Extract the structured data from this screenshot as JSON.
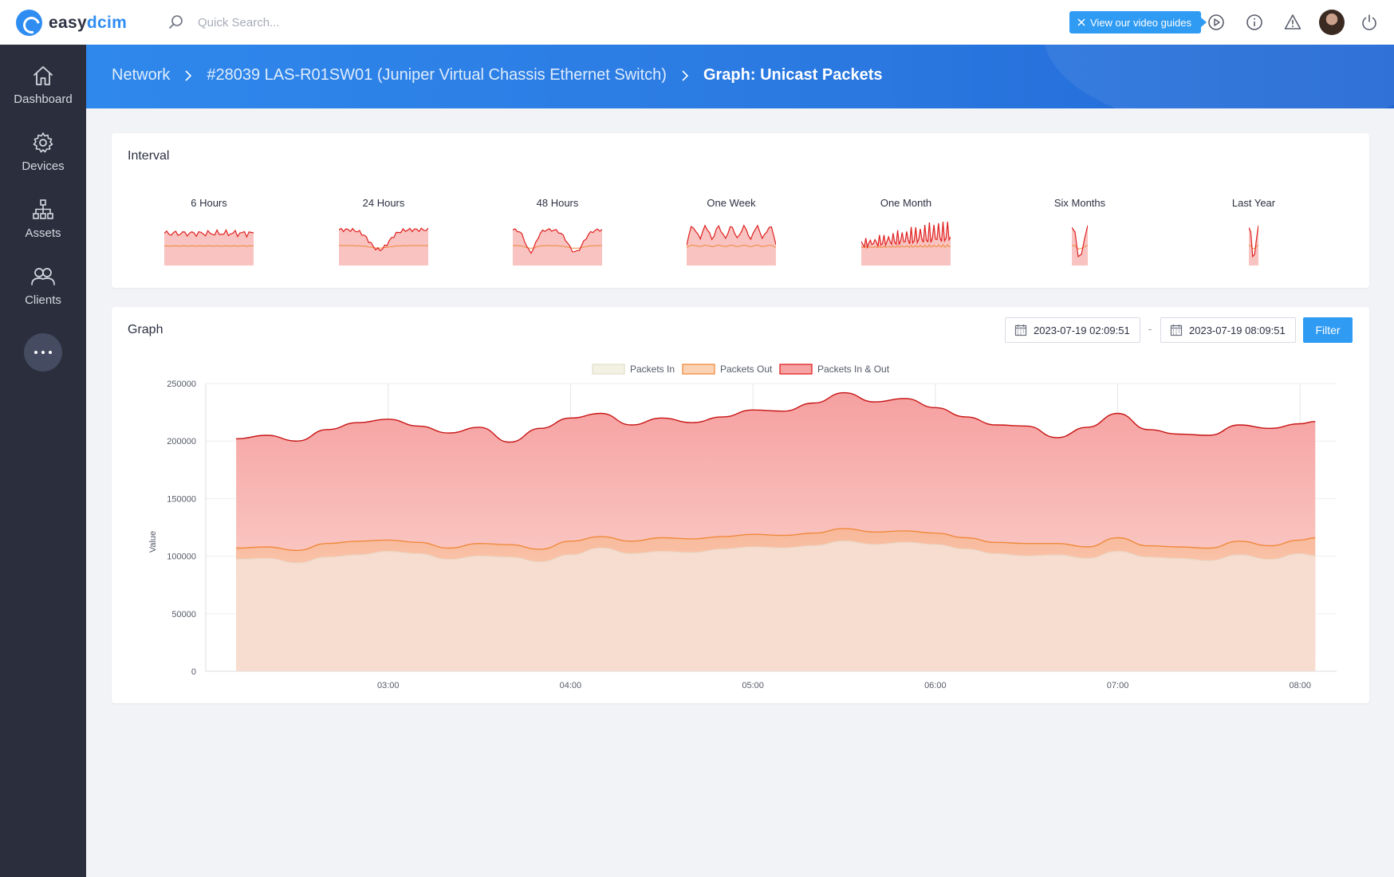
{
  "app": {
    "brand_prefix": "easy",
    "brand_suffix": "dcim"
  },
  "search": {
    "placeholder": "Quick Search..."
  },
  "topbar": {
    "video_guides_label": "View our video guides",
    "icons": [
      "play-circle-icon",
      "info-icon",
      "warning-icon",
      "avatar",
      "power-icon"
    ]
  },
  "sidebar": {
    "items": [
      {
        "label": "Dashboard",
        "icon": "home-icon"
      },
      {
        "label": "Devices",
        "icon": "gear-icon"
      },
      {
        "label": "Assets",
        "icon": "sitemap-icon"
      },
      {
        "label": "Clients",
        "icon": "users-icon"
      }
    ],
    "more_icon": "ellipsis-icon"
  },
  "breadcrumb": {
    "items": [
      "Network",
      "#28039 LAS-R01SW01 (Juniper Virtual Chassis Ethernet Switch)"
    ],
    "current": "Graph: Unicast Packets"
  },
  "interval": {
    "title": "Interval",
    "items": [
      {
        "label": "6 Hours",
        "shape": "flat"
      },
      {
        "label": "24 Hours",
        "shape": "dip"
      },
      {
        "label": "48 Hours",
        "shape": "double-dip"
      },
      {
        "label": "One Week",
        "shape": "weekly"
      },
      {
        "label": "One Month",
        "shape": "monthly"
      },
      {
        "label": "Six Months",
        "shape": "narrow"
      },
      {
        "label": "Last Year",
        "shape": "narrow-thin"
      }
    ]
  },
  "graph": {
    "title": "Graph",
    "date_from": "2023-07-19 02:09:51",
    "date_separator": "-",
    "date_to": "2023-07-19 08:09:51",
    "filter_label": "Filter"
  },
  "colors": {
    "primary": "#2f9bf3",
    "sidebar": "#2b2f3d",
    "in_out_line": "#e02020",
    "in_out_fill": "#f5a3a3",
    "out_line": "#f08a3c",
    "out_fill": "#fbd3b4",
    "in_line": "#ecd9c8"
  },
  "chart_data": {
    "type": "area",
    "ylabel": "Value",
    "xlabel": "",
    "ylim": [
      0,
      250000
    ],
    "yticks": [
      0,
      50000,
      100000,
      150000,
      200000,
      250000
    ],
    "xticks": [
      "03:00",
      "04:00",
      "05:00",
      "06:00",
      "07:00",
      "08:00"
    ],
    "x_range": [
      "02:10",
      "08:05"
    ],
    "grid": true,
    "legend_position": "top-center",
    "x": [
      "02:10",
      "02:20",
      "02:30",
      "02:40",
      "02:50",
      "03:00",
      "03:10",
      "03:20",
      "03:30",
      "03:40",
      "03:50",
      "04:00",
      "04:10",
      "04:20",
      "04:30",
      "04:40",
      "04:50",
      "05:00",
      "05:10",
      "05:20",
      "05:30",
      "05:40",
      "05:50",
      "06:00",
      "06:10",
      "06:20",
      "06:30",
      "06:40",
      "06:50",
      "07:00",
      "07:10",
      "07:20",
      "07:30",
      "07:40",
      "07:50",
      "08:00",
      "08:05"
    ],
    "series": [
      {
        "name": "Packets In",
        "values": [
          97000,
          98000,
          94000,
          99000,
          101000,
          104000,
          102000,
          97000,
          100000,
          99000,
          95000,
          101000,
          107000,
          102000,
          104000,
          103000,
          106000,
          108000,
          107000,
          109000,
          113000,
          110000,
          112000,
          110000,
          106000,
          102000,
          100000,
          101000,
          98000,
          104000,
          99000,
          98000,
          96000,
          101000,
          97000,
          102000,
          100000
        ]
      },
      {
        "name": "Packets Out",
        "values": [
          107000,
          108000,
          105000,
          111000,
          113000,
          114000,
          112000,
          107000,
          111000,
          110000,
          106000,
          113000,
          117000,
          113000,
          116000,
          115000,
          117000,
          119000,
          118000,
          120000,
          124000,
          121000,
          122000,
          120000,
          116000,
          112000,
          111000,
          111000,
          108000,
          116000,
          109000,
          108000,
          107000,
          113000,
          109000,
          114000,
          116000
        ]
      },
      {
        "name": "Packets In & Out",
        "values": [
          202000,
          205000,
          200000,
          210000,
          216000,
          219000,
          213000,
          207000,
          212000,
          199000,
          211000,
          220000,
          224000,
          214000,
          220000,
          216000,
          221000,
          227000,
          226000,
          233000,
          242000,
          234000,
          237000,
          229000,
          221000,
          214000,
          213000,
          203000,
          212000,
          224000,
          210000,
          206000,
          205000,
          214000,
          211000,
          215000,
          217000
        ]
      }
    ]
  }
}
